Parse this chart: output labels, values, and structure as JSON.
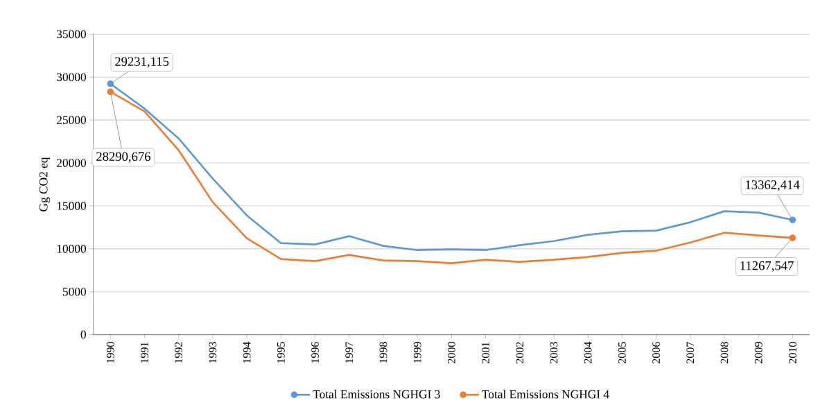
{
  "chart_data": {
    "type": "line",
    "ylabel": "Gg CO2 eq",
    "categories": [
      "1990",
      "1991",
      "1992",
      "1993",
      "1994",
      "1995",
      "1996",
      "1997",
      "1998",
      "1999",
      "2000",
      "2001",
      "2002",
      "2003",
      "2004",
      "2005",
      "2006",
      "2007",
      "2008",
      "2009",
      "2010"
    ],
    "series": [
      {
        "name": "Total Emissions NGHGI 3",
        "color": "#5b9bd5",
        "values": [
          29231.115,
          26330,
          22860,
          18170,
          13890,
          10660,
          10500,
          11470,
          10340,
          9850,
          9940,
          9850,
          10420,
          10900,
          11630,
          12040,
          12120,
          13090,
          14380,
          14220,
          13362.414
        ],
        "value_labels": [
          "29231,115",
          null,
          null,
          null,
          null,
          null,
          null,
          null,
          null,
          null,
          null,
          null,
          null,
          null,
          null,
          null,
          null,
          null,
          null,
          null,
          "13362,414"
        ]
      },
      {
        "name": "Total Emissions NGHGI 4",
        "color": "#ed7d31",
        "values": [
          28290.676,
          26010,
          21490,
          15430,
          11230,
          8810,
          8560,
          9290,
          8640,
          8560,
          8320,
          8720,
          8480,
          8720,
          9050,
          9530,
          9770,
          10740,
          11870,
          11550,
          11267.547
        ],
        "value_labels": [
          "28290,676",
          null,
          null,
          null,
          null,
          null,
          null,
          null,
          null,
          null,
          null,
          null,
          null,
          null,
          null,
          null,
          null,
          null,
          null,
          null,
          "11267,547"
        ]
      }
    ],
    "ylim": [
      0,
      35000
    ],
    "yticks": [
      0,
      5000,
      10000,
      15000,
      20000,
      25000,
      30000,
      35000
    ],
    "grid": "y",
    "legend": "bottom",
    "line_style": "solid"
  }
}
